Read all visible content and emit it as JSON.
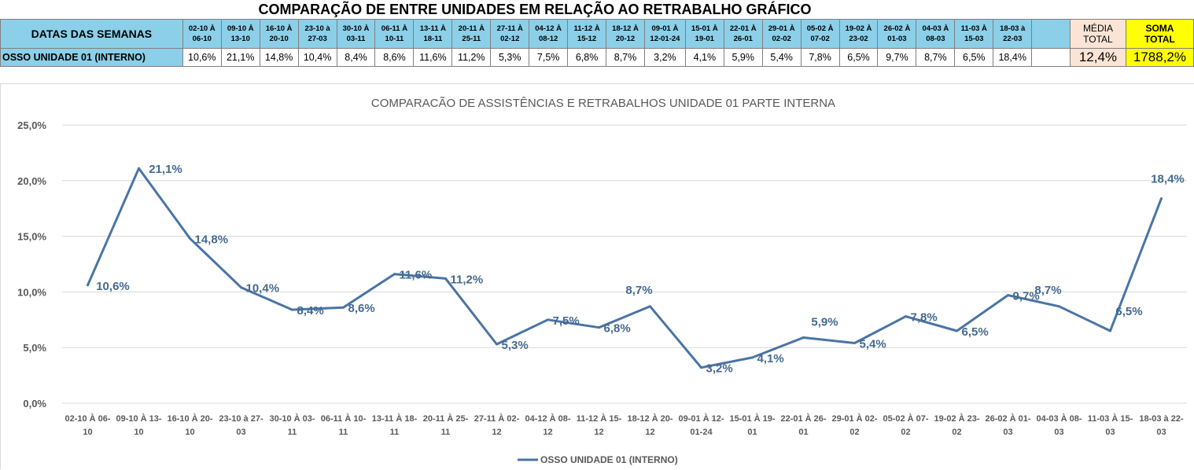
{
  "sheet_title": "COMPARAÇÃO DE ENTRE UNIDADES EM RELAÇÃO AO RETRABALHO GRÁFICO",
  "table": {
    "header_label": "DATAS DAS SEMANAS",
    "row_label": "OSSO UNIDADE 01 (INTERNO)",
    "weeks": [
      [
        "02-10 À",
        "06-10"
      ],
      [
        "09-10 À",
        "13-10"
      ],
      [
        "16-10 À",
        "20-10"
      ],
      [
        "23-10 à",
        "27-03"
      ],
      [
        "30-10 À",
        "03-11"
      ],
      [
        "06-11 À",
        "10-11"
      ],
      [
        "13-11 À",
        "18-11"
      ],
      [
        "20-11 À",
        "25-11"
      ],
      [
        "27-11 À",
        "02-12"
      ],
      [
        "04-12 À",
        "08-12"
      ],
      [
        "11-12 À",
        "15-12"
      ],
      [
        "18-12 À",
        "20-12"
      ],
      [
        "09-01 À",
        "12-01-24"
      ],
      [
        "15-01 À",
        "19-01"
      ],
      [
        "22-01 À",
        "26-01"
      ],
      [
        "29-01 À",
        "02-02"
      ],
      [
        "05-02 À",
        "07-02"
      ],
      [
        "19-02 À",
        "23-02"
      ],
      [
        "26-02 À",
        "01-03"
      ],
      [
        "04-03 À",
        "08-03"
      ],
      [
        "11-03 À",
        "15-03"
      ],
      [
        "18-03 à",
        "22-03"
      ]
    ],
    "values": [
      "10,6%",
      "21,1%",
      "14,8%",
      "10,4%",
      "8,4%",
      "8,6%",
      "11,6%",
      "11,2%",
      "5,3%",
      "7,5%",
      "6,8%",
      "8,7%",
      "3,2%",
      "4,1%",
      "5,9%",
      "5,4%",
      "7,8%",
      "6,5%",
      "9,7%",
      "8,7%",
      "6,5%",
      "18,4%"
    ],
    "media_label": [
      "MÉDIA",
      "TOTAL"
    ],
    "media_value": "12,4%",
    "soma_label": [
      "SOMA",
      "TOTAL"
    ],
    "soma_value": "1788,2%"
  },
  "chart_data": {
    "type": "line",
    "title": "COMPARACÃO DE ASSISTÊNCIAS E RETRABALHOS UNIDADE 01 PARTE INTERNA",
    "categories": [
      [
        "02-10 À 06-",
        "10"
      ],
      [
        "09-10 À 13-",
        "10"
      ],
      [
        "16-10 À 20-",
        "10"
      ],
      [
        "23-10 à 27-",
        "03"
      ],
      [
        "30-10 À 03-",
        "11"
      ],
      [
        "06-11 À 10-",
        "11"
      ],
      [
        "13-11 À 18-",
        "11"
      ],
      [
        "20-11 À 25-",
        "11"
      ],
      [
        "27-11 À 02-",
        "12"
      ],
      [
        "04-12 À 08-",
        "12"
      ],
      [
        "11-12 À 15-",
        "12"
      ],
      [
        "18-12 À 20-",
        "12"
      ],
      [
        "09-01 À 12-",
        "01-24"
      ],
      [
        "15-01 À 19-",
        "01"
      ],
      [
        "22-01 À 26-",
        "01"
      ],
      [
        "29-01 À 02-",
        "02"
      ],
      [
        "05-02 À 07-",
        "02"
      ],
      [
        "19-02 À 23-",
        "02"
      ],
      [
        "26-02 À 01-",
        "03"
      ],
      [
        "04-03 À 08-",
        "03"
      ],
      [
        "11-03 À 15-",
        "03"
      ],
      [
        "18-03 à 22-",
        "03"
      ]
    ],
    "series": [
      {
        "name": "OSSO UNIDADE 01 (INTERNO)",
        "values": [
          10.6,
          21.1,
          14.8,
          10.4,
          8.4,
          8.6,
          11.6,
          11.2,
          5.3,
          7.5,
          6.8,
          8.7,
          3.2,
          4.1,
          5.9,
          5.4,
          7.8,
          6.5,
          9.7,
          8.7,
          6.5,
          18.4
        ],
        "labels": [
          "10,6%",
          "21,1%",
          "14,8%",
          "10,4%",
          "8,4%",
          "8,6%",
          "11,6%",
          "11,2%",
          "5,3%",
          "7,5%",
          "6,8%",
          "8,7%",
          "3,2%",
          "4,1%",
          "5,9%",
          "5,4%",
          "7,8%",
          "6,5%",
          "9,7%",
          "8,7%",
          "6,5%",
          "18,4%"
        ],
        "color": "#4a74a5"
      }
    ],
    "ylim": [
      0,
      25
    ],
    "yticks": [
      "0,0%",
      "5,0%",
      "10,0%",
      "15,0%",
      "20,0%",
      "25,0%"
    ],
    "ytick_values": [
      0,
      5,
      10,
      15,
      20,
      25
    ],
    "grid": true,
    "legend_position": "bottom"
  }
}
